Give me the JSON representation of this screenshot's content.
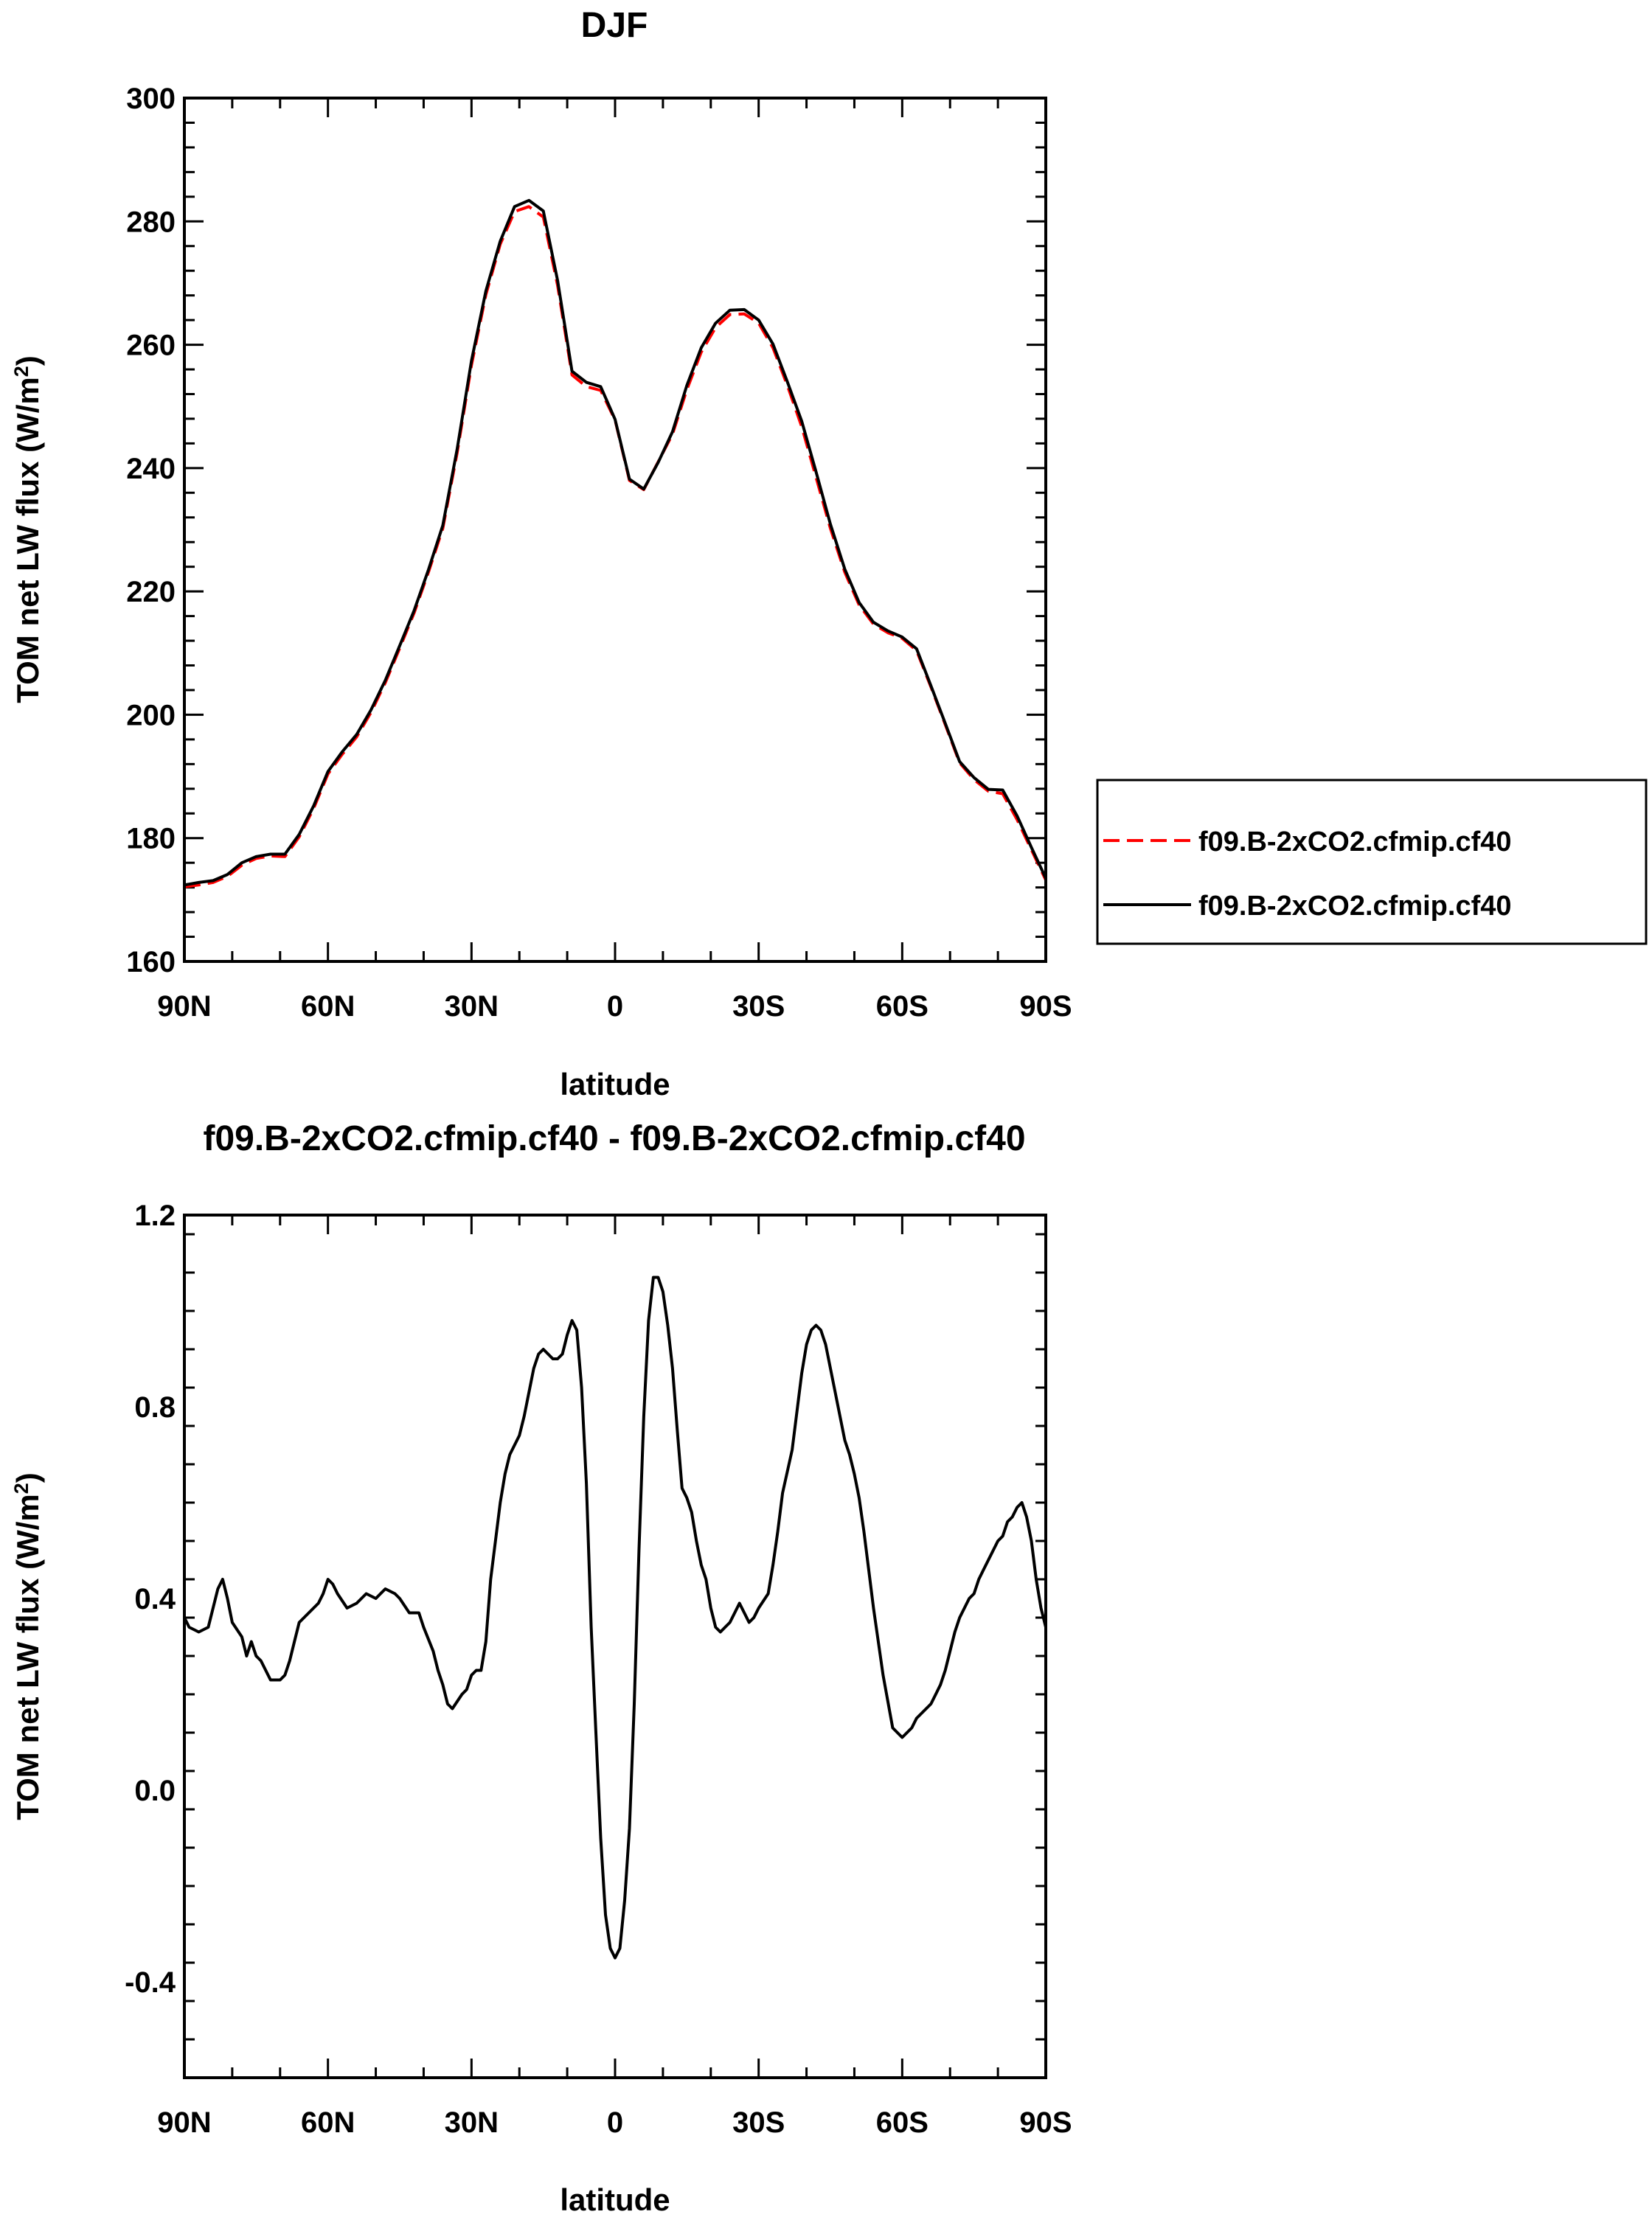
{
  "colors": {
    "series_1": "#ff0000",
    "series_2": "#000000",
    "frame": "#000000",
    "background": "#ffffff"
  },
  "chart_data": [
    {
      "type": "line",
      "title": "DJF",
      "xlabel": "latitude",
      "ylabel": "TOM net LW flux (W/m²)",
      "ylabel_main": "TOM net LW flux (W/m",
      "ylabel_sup": "2",
      "ylabel_end": ")",
      "xlim": [
        -90,
        90
      ],
      "ylim": [
        160,
        300
      ],
      "x_direction": "north-to-south",
      "x_ticks": [
        -90,
        -60,
        -30,
        0,
        30,
        60,
        90
      ],
      "x_tick_labels": [
        "90N",
        "60N",
        "30N",
        "0",
        "30S",
        "60S",
        "90S"
      ],
      "y_ticks": [
        160,
        180,
        200,
        220,
        240,
        260,
        280,
        300
      ],
      "y_tick_labels": [
        "160",
        "180",
        "200",
        "220",
        "240",
        "260",
        "280",
        "300"
      ],
      "grid": false,
      "legend_position": "right",
      "legend": [
        {
          "label": "f09.B-2xCO2.cfmip.cf40",
          "style": "dashed",
          "color": "#ff0000"
        },
        {
          "label": "f09.B-2xCO2.cfmip.cf40",
          "style": "solid",
          "color": "#000000"
        }
      ],
      "x": [
        -90,
        -87,
        -84,
        -81,
        -78,
        -75,
        -72,
        -69,
        -66,
        -63,
        -60,
        -57,
        -54,
        -51,
        -48,
        -45,
        -42,
        -39,
        -36,
        -33,
        -30,
        -27,
        -24,
        -21,
        -18,
        -15,
        -12,
        -9,
        -6,
        -3,
        0,
        3,
        6,
        9,
        12,
        15,
        18,
        21,
        24,
        27,
        30,
        33,
        36,
        39,
        42,
        45,
        48,
        51,
        54,
        57,
        60,
        63,
        66,
        69,
        72,
        75,
        78,
        81,
        84,
        87,
        90
      ],
      "series": [
        {
          "name": "f09.B-2xCO2.cfmip.cf40",
          "style": "dashed",
          "color": "#ff0000",
          "values": [
            172.1,
            172.4,
            172.8,
            173.8,
            175.6,
            176.7,
            177.1,
            177.0,
            180.2,
            184.8,
            190.4,
            193.6,
            196.4,
            200.4,
            205.2,
            210.8,
            216.5,
            223.1,
            230.2,
            242.5,
            256.7,
            268.1,
            276.3,
            281.6,
            282.4,
            280.7,
            269.6,
            255.1,
            253.2,
            252.6,
            247.8,
            238.0,
            236.5,
            241.0,
            245.5,
            252.7,
            258.8,
            262.8,
            264.9,
            265.0,
            263.5,
            259.5,
            253.4,
            246.7,
            238.5,
            230.2,
            223.1,
            217.8,
            214.7,
            213.3,
            212.4,
            210.4,
            204.5,
            198.4,
            192.2,
            189.5,
            187.6,
            187.2,
            183.0,
            178.1,
            173.2
          ]
        },
        {
          "name": "f09.B-2xCO2.cfmip.cf40",
          "style": "solid",
          "color": "#000000",
          "values": [
            172.4,
            172.8,
            173.1,
            174.1,
            176.0,
            177.0,
            177.4,
            177.4,
            180.6,
            185.2,
            190.8,
            194.0,
            196.8,
            200.8,
            205.6,
            211.2,
            216.9,
            223.5,
            230.7,
            243.1,
            257.4,
            268.7,
            276.8,
            282.4,
            283.4,
            281.7,
            270.4,
            255.7,
            253.9,
            253.2,
            247.9,
            238.2,
            236.6,
            240.9,
            245.9,
            253.4,
            259.5,
            263.5,
            265.6,
            265.7,
            264.0,
            260.1,
            254.0,
            247.6,
            239.4,
            230.9,
            223.6,
            218.2,
            215.0,
            213.6,
            212.6,
            210.7,
            204.7,
            198.6,
            192.4,
            189.8,
            187.9,
            187.8,
            183.6,
            178.5,
            173.5
          ]
        }
      ]
    },
    {
      "type": "line",
      "title": "f09.B-2xCO2.cfmip.cf40 - f09.B-2xCO2.cfmip.cf40",
      "xlabel": "latitude",
      "ylabel": "TOM net LW flux (W/m²)",
      "ylabel_main": "TOM net LW flux (W/m",
      "ylabel_sup": "2",
      "ylabel_end": ")",
      "xlim": [
        -90,
        90
      ],
      "ylim": [
        -0.6,
        1.2
      ],
      "x_direction": "north-to-south",
      "x_ticks": [
        -90,
        -60,
        -30,
        0,
        30,
        60,
        90
      ],
      "x_tick_labels": [
        "90N",
        "60N",
        "30N",
        "0",
        "30S",
        "60S",
        "90S"
      ],
      "y_ticks": [
        -0.4,
        0.0,
        0.4,
        0.8,
        1.2
      ],
      "y_tick_labels": [
        "-0.4",
        "0.0",
        "0.4",
        "0.8",
        "1.2"
      ],
      "grid": false,
      "series": [
        {
          "name": "",
          "style": "solid",
          "color": "#000000",
          "x": [
            -90,
            -89,
            -87,
            -85,
            -84,
            -83,
            -82,
            -81,
            -80,
            -78,
            -77,
            -76,
            -75,
            -74,
            -73,
            -72,
            -71,
            -70,
            -69,
            -68,
            -67,
            -66,
            -64,
            -62,
            -61,
            -60,
            -59,
            -58,
            -56,
            -54,
            -52,
            -50,
            -49,
            -48,
            -46,
            -45,
            -43,
            -41,
            -40,
            -38,
            -37,
            -36,
            -35,
            -34,
            -32,
            -31,
            -30,
            -29,
            -28,
            -27,
            -26,
            -25,
            -24,
            -23,
            -22,
            -20,
            -19,
            -18,
            -17,
            -16,
            -15,
            -14,
            -13,
            -12,
            -11,
            -10,
            -9,
            -8,
            -7,
            -6,
            -5,
            -4,
            -3,
            -2,
            -1,
            0,
            1,
            2,
            3,
            4,
            5,
            6,
            7,
            8,
            9,
            10,
            11,
            12,
            13,
            14,
            15,
            16,
            17,
            18,
            19,
            20,
            21,
            22,
            23,
            24,
            25,
            26,
            27,
            28,
            29,
            30,
            32,
            33,
            34,
            35,
            37,
            38,
            39,
            40,
            41,
            42,
            43,
            44,
            45,
            46,
            47,
            48,
            49,
            50,
            51,
            52,
            53,
            54,
            56,
            58,
            60,
            62,
            63,
            64,
            65,
            66,
            67,
            68,
            69,
            70,
            71,
            72,
            73,
            74,
            75,
            76,
            77,
            78,
            79,
            80,
            81,
            82,
            83,
            84,
            85,
            86,
            87,
            88,
            89,
            90
          ],
          "values": [
            0.36,
            0.34,
            0.33,
            0.34,
            0.38,
            0.42,
            0.44,
            0.4,
            0.35,
            0.32,
            0.28,
            0.31,
            0.28,
            0.27,
            0.25,
            0.23,
            0.23,
            0.23,
            0.24,
            0.27,
            0.31,
            0.35,
            0.37,
            0.39,
            0.41,
            0.44,
            0.43,
            0.41,
            0.38,
            0.39,
            0.41,
            0.4,
            0.41,
            0.42,
            0.41,
            0.4,
            0.37,
            0.37,
            0.34,
            0.29,
            0.25,
            0.22,
            0.18,
            0.17,
            0.2,
            0.21,
            0.24,
            0.25,
            0.25,
            0.31,
            0.44,
            0.52,
            0.6,
            0.66,
            0.7,
            0.74,
            0.78,
            0.83,
            0.88,
            0.91,
            0.92,
            0.91,
            0.9,
            0.9,
            0.91,
            0.95,
            0.98,
            0.96,
            0.84,
            0.64,
            0.34,
            0.12,
            -0.1,
            -0.26,
            -0.33,
            -0.35,
            -0.33,
            -0.23,
            -0.08,
            0.18,
            0.5,
            0.78,
            0.98,
            1.07,
            1.07,
            1.04,
            0.97,
            0.88,
            0.75,
            0.63,
            0.61,
            0.58,
            0.52,
            0.47,
            0.44,
            0.38,
            0.34,
            0.33,
            0.34,
            0.35,
            0.37,
            0.39,
            0.37,
            0.35,
            0.36,
            0.38,
            0.41,
            0.47,
            0.54,
            0.62,
            0.71,
            0.79,
            0.87,
            0.93,
            0.96,
            0.97,
            0.96,
            0.93,
            0.88,
            0.83,
            0.78,
            0.73,
            0.7,
            0.66,
            0.61,
            0.54,
            0.46,
            0.38,
            0.24,
            0.13,
            0.11,
            0.13,
            0.15,
            0.16,
            0.17,
            0.18,
            0.2,
            0.22,
            0.25,
            0.29,
            0.33,
            0.36,
            0.38,
            0.4,
            0.41,
            0.44,
            0.46,
            0.48,
            0.5,
            0.52,
            0.53,
            0.56,
            0.57,
            0.59,
            0.6,
            0.57,
            0.52,
            0.44,
            0.38,
            0.34
          ]
        }
      ]
    }
  ]
}
